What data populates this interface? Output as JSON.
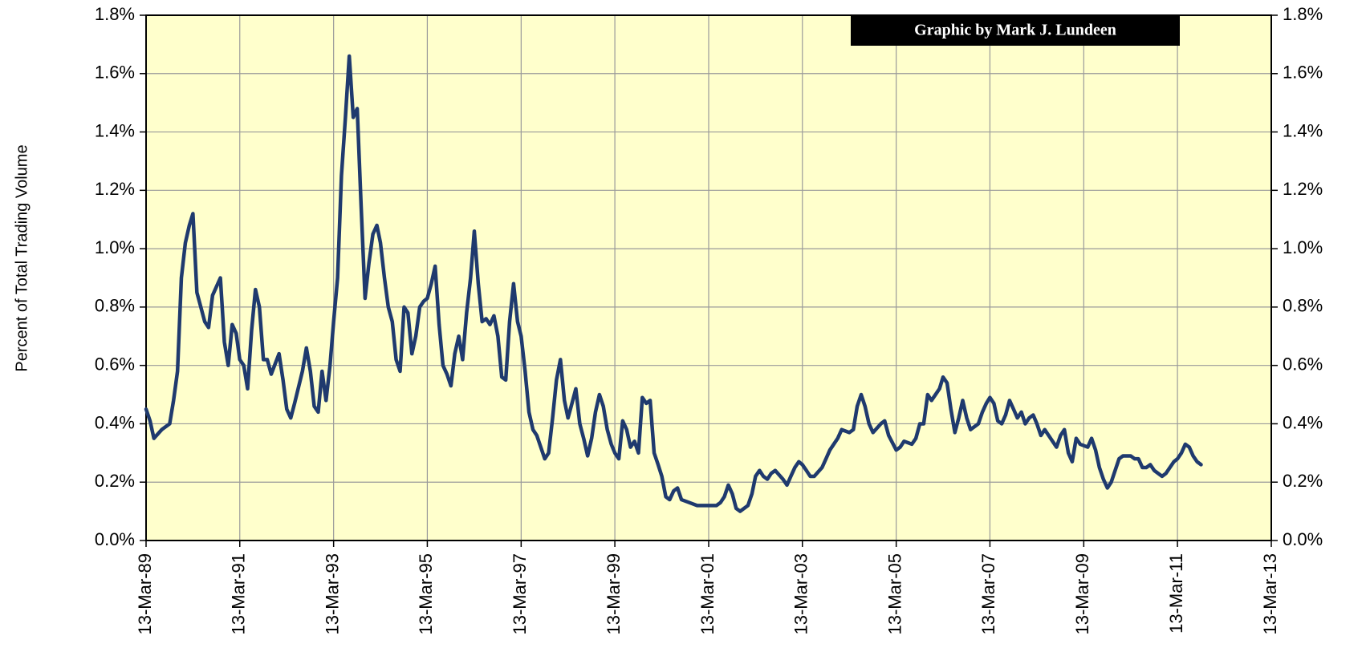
{
  "chart_data": {
    "type": "line",
    "annotation": "Graphic by Mark J. Lundeen",
    "ylabel": "Percent of Total Trading Volume",
    "color": "#1f3a6e",
    "background": "#ffffcc",
    "grid": true,
    "xlim": [
      "1989-03-13",
      "2013-03-13"
    ],
    "xticks": [
      {
        "value": "1989-03-13",
        "label": "13-Mar-89"
      },
      {
        "value": "1991-03-13",
        "label": "13-Mar-91"
      },
      {
        "value": "1993-03-13",
        "label": "13-Mar-93"
      },
      {
        "value": "1995-03-13",
        "label": "13-Mar-95"
      },
      {
        "value": "1997-03-13",
        "label": "13-Mar-97"
      },
      {
        "value": "1999-03-13",
        "label": "13-Mar-99"
      },
      {
        "value": "2001-03-13",
        "label": "13-Mar-01"
      },
      {
        "value": "2003-03-13",
        "label": "13-Mar-03"
      },
      {
        "value": "2005-03-13",
        "label": "13-Mar-05"
      },
      {
        "value": "2007-03-13",
        "label": "13-Mar-07"
      },
      {
        "value": "2009-03-13",
        "label": "13-Mar-09"
      },
      {
        "value": "2011-03-13",
        "label": "13-Mar-11"
      },
      {
        "value": "2013-03-13",
        "label": "13-Mar-13"
      }
    ],
    "ylim": [
      0,
      1.8
    ],
    "yticks": [
      {
        "value": 0,
        "label": "0.0%"
      },
      {
        "value": 0.2,
        "label": "0.2%"
      },
      {
        "value": 0.4,
        "label": "0.4%"
      },
      {
        "value": 0.6,
        "label": "0.6%"
      },
      {
        "value": 0.8,
        "label": "0.8%"
      },
      {
        "value": 1.0,
        "label": "1.0%"
      },
      {
        "value": 1.2,
        "label": "1.2%"
      },
      {
        "value": 1.4,
        "label": "1.4%"
      },
      {
        "value": 1.6,
        "label": "1.6%"
      },
      {
        "value": 1.8,
        "label": "1.8%"
      }
    ],
    "y2lim": [
      0,
      1.8
    ],
    "y2ticks": [
      {
        "value": 0,
        "label": "0.0%"
      },
      {
        "value": 0.2,
        "label": "0.2%"
      },
      {
        "value": 0.4,
        "label": "0.4%"
      },
      {
        "value": 0.6,
        "label": "0.6%"
      },
      {
        "value": 0.8,
        "label": "0.8%"
      },
      {
        "value": 1.0,
        "label": "1.0%"
      },
      {
        "value": 1.2,
        "label": "1.2%"
      },
      {
        "value": 1.4,
        "label": "1.4%"
      },
      {
        "value": 1.6,
        "label": "1.6%"
      },
      {
        "value": 1.8,
        "label": "1.8%"
      }
    ],
    "x": [
      "1989-03-13",
      "1989-04-13",
      "1989-05-13",
      "1989-07-13",
      "1989-09-13",
      "1989-10-13",
      "1989-11-13",
      "1989-12-13",
      "1990-01-13",
      "1990-02-13",
      "1990-03-13",
      "1990-04-13",
      "1990-06-13",
      "1990-07-13",
      "1990-08-13",
      "1990-10-13",
      "1990-11-13",
      "1990-12-13",
      "1991-01-13",
      "1991-02-13",
      "1991-03-13",
      "1991-04-13",
      "1991-05-13",
      "1991-06-13",
      "1991-07-13",
      "1991-08-13",
      "1991-09-13",
      "1991-10-13",
      "1991-11-13",
      "1992-01-13",
      "1992-02-13",
      "1992-03-13",
      "1992-04-13",
      "1992-05-13",
      "1992-07-13",
      "1992-08-13",
      "1992-09-13",
      "1992-10-13",
      "1992-11-13",
      "1992-12-13",
      "1993-01-13",
      "1993-02-13",
      "1993-03-13",
      "1993-04-13",
      "1993-05-13",
      "1993-06-13",
      "1993-07-13",
      "1993-08-13",
      "1993-09-13",
      "1993-10-13",
      "1993-11-13",
      "1993-12-13",
      "1994-01-13",
      "1994-02-13",
      "1994-03-13",
      "1994-04-13",
      "1994-05-13",
      "1994-06-13",
      "1994-07-13",
      "1994-08-13",
      "1994-09-13",
      "1994-10-13",
      "1994-11-13",
      "1994-12-13",
      "1995-01-13",
      "1995-02-13",
      "1995-03-13",
      "1995-04-13",
      "1995-05-13",
      "1995-06-13",
      "1995-07-13",
      "1995-08-13",
      "1995-09-13",
      "1995-10-13",
      "1995-11-13",
      "1995-12-13",
      "1996-01-13",
      "1996-02-13",
      "1996-03-13",
      "1996-04-13",
      "1996-05-13",
      "1996-06-13",
      "1996-07-13",
      "1996-08-13",
      "1996-09-13",
      "1996-10-13",
      "1996-11-13",
      "1996-12-13",
      "1997-01-13",
      "1997-02-13",
      "1997-03-13",
      "1997-04-13",
      "1997-05-13",
      "1997-06-13",
      "1997-07-13",
      "1997-08-13",
      "1997-09-13",
      "1997-10-13",
      "1997-11-13",
      "1997-12-13",
      "1998-01-13",
      "1998-02-13",
      "1998-03-13",
      "1998-04-13",
      "1998-05-13",
      "1998-06-13",
      "1998-07-13",
      "1998-08-13",
      "1998-09-13",
      "1998-10-13",
      "1998-11-13",
      "1998-12-13",
      "1999-01-13",
      "1999-02-13",
      "1999-03-13",
      "1999-04-13",
      "1999-05-13",
      "1999-06-13",
      "1999-07-13",
      "1999-08-13",
      "1999-09-13",
      "1999-10-13",
      "1999-11-13",
      "1999-12-13",
      "2000-01-13",
      "2000-02-13",
      "2000-03-13",
      "2000-04-13",
      "2000-05-13",
      "2000-06-13",
      "2000-07-13",
      "2000-08-13",
      "2000-10-13",
      "2000-12-13",
      "2001-02-13",
      "2001-05-13",
      "2001-06-13",
      "2001-07-13",
      "2001-08-13",
      "2001-09-13",
      "2001-10-13",
      "2001-11-13",
      "2002-01-13",
      "2002-02-13",
      "2002-03-13",
      "2002-04-13",
      "2002-05-13",
      "2002-06-13",
      "2002-07-13",
      "2002-08-13",
      "2002-10-13",
      "2002-11-13",
      "2002-12-13",
      "2003-01-13",
      "2003-02-13",
      "2003-03-13",
      "2003-04-13",
      "2003-05-13",
      "2003-06-13",
      "2003-08-13",
      "2003-09-13",
      "2003-10-13",
      "2003-12-13",
      "2004-01-13",
      "2004-03-13",
      "2004-04-13",
      "2004-05-13",
      "2004-06-13",
      "2004-07-13",
      "2004-08-13",
      "2004-09-13",
      "2004-11-13",
      "2004-12-13",
      "2005-01-13",
      "2005-03-13",
      "2005-04-13",
      "2005-05-13",
      "2005-07-13",
      "2005-08-13",
      "2005-09-13",
      "2005-10-13",
      "2005-11-13",
      "2005-12-13",
      "2006-01-13",
      "2006-02-13",
      "2006-03-13",
      "2006-04-13",
      "2006-05-13",
      "2006-06-13",
      "2006-07-13",
      "2006-08-13",
      "2006-09-13",
      "2006-10-13",
      "2006-12-13",
      "2007-01-13",
      "2007-02-13",
      "2007-03-13",
      "2007-04-13",
      "2007-05-13",
      "2007-06-13",
      "2007-07-13",
      "2007-08-13",
      "2007-09-13",
      "2007-10-13",
      "2007-11-13",
      "2007-12-13",
      "2008-01-13",
      "2008-02-13",
      "2008-03-13",
      "2008-04-13",
      "2008-05-13",
      "2008-07-13",
      "2008-08-13",
      "2008-09-13",
      "2008-10-13",
      "2008-11-13",
      "2008-12-13",
      "2009-01-13",
      "2009-02-13",
      "2009-04-13",
      "2009-05-13",
      "2009-06-13",
      "2009-07-13",
      "2009-08-13",
      "2009-09-13",
      "2009-10-13",
      "2009-12-13",
      "2010-01-13",
      "2010-03-13",
      "2010-04-13",
      "2010-05-13",
      "2010-06-13",
      "2010-07-13",
      "2010-08-13",
      "2010-09-13",
      "2010-11-13",
      "2010-12-13",
      "2011-01-13",
      "2011-02-13",
      "2011-03-13",
      "2011-04-13",
      "2011-05-13",
      "2011-06-13",
      "2011-07-13",
      "2011-08-13",
      "2011-09-13"
    ],
    "values": [
      0.45,
      0.41,
      0.35,
      0.38,
      0.4,
      0.48,
      0.58,
      0.9,
      1.02,
      1.08,
      1.12,
      0.85,
      0.75,
      0.73,
      0.84,
      0.9,
      0.68,
      0.6,
      0.74,
      0.71,
      0.62,
      0.6,
      0.52,
      0.72,
      0.86,
      0.8,
      0.62,
      0.62,
      0.57,
      0.64,
      0.55,
      0.45,
      0.42,
      0.47,
      0.58,
      0.66,
      0.58,
      0.46,
      0.44,
      0.58,
      0.48,
      0.6,
      0.75,
      0.9,
      1.25,
      1.45,
      1.66,
      1.45,
      1.48,
      1.15,
      0.83,
      0.95,
      1.05,
      1.08,
      1.02,
      0.9,
      0.8,
      0.75,
      0.62,
      0.58,
      0.8,
      0.78,
      0.64,
      0.7,
      0.8,
      0.82,
      0.83,
      0.88,
      0.94,
      0.74,
      0.6,
      0.57,
      0.53,
      0.64,
      0.7,
      0.62,
      0.78,
      0.9,
      1.06,
      0.88,
      0.75,
      0.76,
      0.74,
      0.77,
      0.7,
      0.56,
      0.55,
      0.75,
      0.88,
      0.75,
      0.7,
      0.58,
      0.44,
      0.38,
      0.36,
      0.32,
      0.28,
      0.3,
      0.42,
      0.55,
      0.62,
      0.48,
      0.42,
      0.47,
      0.52,
      0.4,
      0.35,
      0.29,
      0.35,
      0.44,
      0.5,
      0.46,
      0.38,
      0.33,
      0.3,
      0.28,
      0.41,
      0.38,
      0.32,
      0.34,
      0.3,
      0.49,
      0.47,
      0.48,
      0.3,
      0.26,
      0.22,
      0.15,
      0.14,
      0.17,
      0.18,
      0.14,
      0.13,
      0.12,
      0.12,
      0.12,
      0.13,
      0.15,
      0.19,
      0.16,
      0.11,
      0.1,
      0.12,
      0.16,
      0.22,
      0.24,
      0.22,
      0.21,
      0.23,
      0.24,
      0.21,
      0.19,
      0.22,
      0.25,
      0.27,
      0.26,
      0.24,
      0.22,
      0.22,
      0.25,
      0.28,
      0.31,
      0.35,
      0.38,
      0.37,
      0.38,
      0.46,
      0.5,
      0.46,
      0.4,
      0.37,
      0.4,
      0.41,
      0.36,
      0.31,
      0.32,
      0.34,
      0.33,
      0.35,
      0.4,
      0.4,
      0.5,
      0.48,
      0.5,
      0.52,
      0.56,
      0.54,
      0.45,
      0.37,
      0.42,
      0.48,
      0.42,
      0.38,
      0.4,
      0.44,
      0.47,
      0.49,
      0.47,
      0.41,
      0.4,
      0.43,
      0.48,
      0.45,
      0.42,
      0.44,
      0.4,
      0.42,
      0.43,
      0.4,
      0.36,
      0.38,
      0.34,
      0.32,
      0.36,
      0.38,
      0.3,
      0.27,
      0.35,
      0.33,
      0.32,
      0.35,
      0.31,
      0.25,
      0.21,
      0.18,
      0.2,
      0.28,
      0.29,
      0.29,
      0.28,
      0.28,
      0.25,
      0.25,
      0.26,
      0.24,
      0.22,
      0.23,
      0.25,
      0.27,
      0.28,
      0.3,
      0.33,
      0.32,
      0.29,
      0.27,
      0.26
    ]
  }
}
